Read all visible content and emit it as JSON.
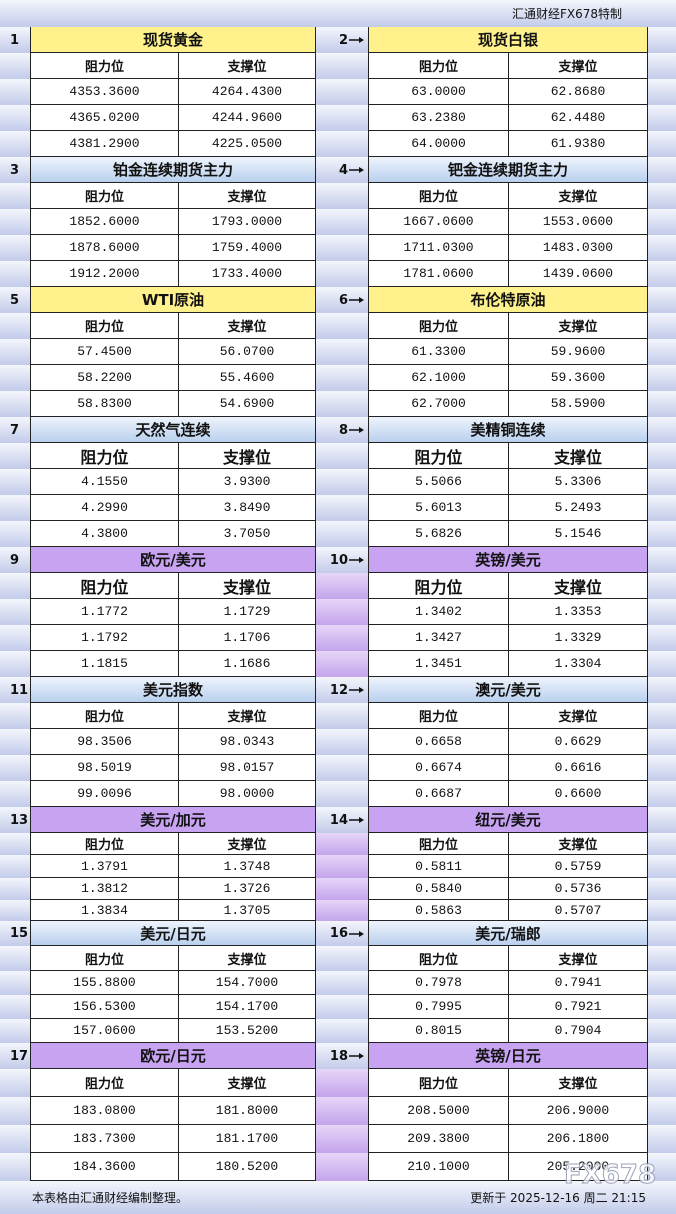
{
  "header": {
    "brand": "汇通财经FX678特制"
  },
  "blocks": [
    {
      "number": "1",
      "title": "现货黄金",
      "columns": [
        "阻力位",
        "支撑位"
      ],
      "rows": [
        [
          "4353.3600",
          "4264.4300"
        ],
        [
          "4365.0200",
          "4244.9600"
        ],
        [
          "4381.2900",
          "4225.0500"
        ]
      ]
    },
    {
      "number": "2",
      "title": "现货白银",
      "columns": [
        "阻力位",
        "支撑位"
      ],
      "rows": [
        [
          "63.0000",
          "62.8680"
        ],
        [
          "63.2380",
          "62.4480"
        ],
        [
          "64.0000",
          "61.9380"
        ]
      ]
    },
    {
      "number": "3",
      "title": "铂金连续期货主力",
      "columns": [
        "阻力位",
        "支撑位"
      ],
      "rows": [
        [
          "1852.6000",
          "1793.0000"
        ],
        [
          "1878.6000",
          "1759.4000"
        ],
        [
          "1912.2000",
          "1733.4000"
        ]
      ]
    },
    {
      "number": "4",
      "title": "钯金连续期货主力",
      "columns": [
        "阻力位",
        "支撑位"
      ],
      "rows": [
        [
          "1667.0600",
          "1553.0600"
        ],
        [
          "1711.0300",
          "1483.0300"
        ],
        [
          "1781.0600",
          "1439.0600"
        ]
      ]
    },
    {
      "number": "5",
      "title": "WTI原油",
      "columns": [
        "阻力位",
        "支撑位"
      ],
      "rows": [
        [
          "57.4500",
          "56.0700"
        ],
        [
          "58.2200",
          "55.4600"
        ],
        [
          "58.8300",
          "54.6900"
        ]
      ]
    },
    {
      "number": "6",
      "title": "布伦特原油",
      "columns": [
        "阻力位",
        "支撑位"
      ],
      "rows": [
        [
          "61.3300",
          "59.9600"
        ],
        [
          "62.1000",
          "59.3600"
        ],
        [
          "62.7000",
          "58.5900"
        ]
      ]
    },
    {
      "number": "7",
      "title": "天然气连续",
      "columns": [
        "阻力位",
        "支撑位"
      ],
      "rows": [
        [
          "4.1550",
          "3.9300"
        ],
        [
          "4.2990",
          "3.8490"
        ],
        [
          "4.3800",
          "3.7050"
        ]
      ]
    },
    {
      "number": "8",
      "title": "美精铜连续",
      "columns": [
        "阻力位",
        "支撑位"
      ],
      "rows": [
        [
          "5.5066",
          "5.3306"
        ],
        [
          "5.6013",
          "5.2493"
        ],
        [
          "5.6826",
          "5.1546"
        ]
      ]
    },
    {
      "number": "9",
      "title": "欧元/美元",
      "columns": [
        "阻力位",
        "支撑位"
      ],
      "rows": [
        [
          "1.1772",
          "1.1729"
        ],
        [
          "1.1792",
          "1.1706"
        ],
        [
          "1.1815",
          "1.1686"
        ]
      ]
    },
    {
      "number": "10",
      "title": "英镑/美元",
      "columns": [
        "阻力位",
        "支撑位"
      ],
      "rows": [
        [
          "1.3402",
          "1.3353"
        ],
        [
          "1.3427",
          "1.3329"
        ],
        [
          "1.3451",
          "1.3304"
        ]
      ]
    },
    {
      "number": "11",
      "title": "美元指数",
      "columns": [
        "阻力位",
        "支撑位"
      ],
      "rows": [
        [
          "98.3506",
          "98.0343"
        ],
        [
          "98.5019",
          "98.0157"
        ],
        [
          "99.0096",
          "98.0000"
        ]
      ]
    },
    {
      "number": "12",
      "title": "澳元/美元",
      "columns": [
        "阻力位",
        "支撑位"
      ],
      "rows": [
        [
          "0.6658",
          "0.6629"
        ],
        [
          "0.6674",
          "0.6616"
        ],
        [
          "0.6687",
          "0.6600"
        ]
      ]
    },
    {
      "number": "13",
      "title": "美元/加元",
      "columns": [
        "阻力位",
        "支撑位"
      ],
      "rows": [
        [
          "1.3791",
          "1.3748"
        ],
        [
          "1.3812",
          "1.3726"
        ],
        [
          "1.3834",
          "1.3705"
        ]
      ]
    },
    {
      "number": "14",
      "title": "纽元/美元",
      "columns": [
        "阻力位",
        "支撑位"
      ],
      "rows": [
        [
          "0.5811",
          "0.5759"
        ],
        [
          "0.5840",
          "0.5736"
        ],
        [
          "0.5863",
          "0.5707"
        ]
      ]
    },
    {
      "number": "15",
      "title": "美元/日元",
      "columns": [
        "阻力位",
        "支撑位"
      ],
      "rows": [
        [
          "155.8800",
          "154.7000"
        ],
        [
          "156.5300",
          "154.1700"
        ],
        [
          "157.0600",
          "153.5200"
        ]
      ]
    },
    {
      "number": "16",
      "title": "美元/瑞郎",
      "columns": [
        "阻力位",
        "支撑位"
      ],
      "rows": [
        [
          "0.7978",
          "0.7941"
        ],
        [
          "0.7995",
          "0.7921"
        ],
        [
          "0.8015",
          "0.7904"
        ]
      ]
    },
    {
      "number": "17",
      "title": "欧元/日元",
      "columns": [
        "阻力位",
        "支撑位"
      ],
      "rows": [
        [
          "183.0800",
          "181.8000"
        ],
        [
          "183.7300",
          "181.1700"
        ],
        [
          "184.3600",
          "180.5200"
        ]
      ]
    },
    {
      "number": "18",
      "title": "英镑/日元",
      "columns": [
        "阻力位",
        "支撑位"
      ],
      "rows": [
        [
          "208.5000",
          "206.9000"
        ],
        [
          "209.3800",
          "206.1800"
        ],
        [
          "210.1000",
          "205.2000"
        ]
      ]
    }
  ],
  "footer": {
    "note": "本表格由汇通财经编制整理。",
    "updated": "更新于 2025-12-16 周二 21:15"
  },
  "watermark": "FX678"
}
